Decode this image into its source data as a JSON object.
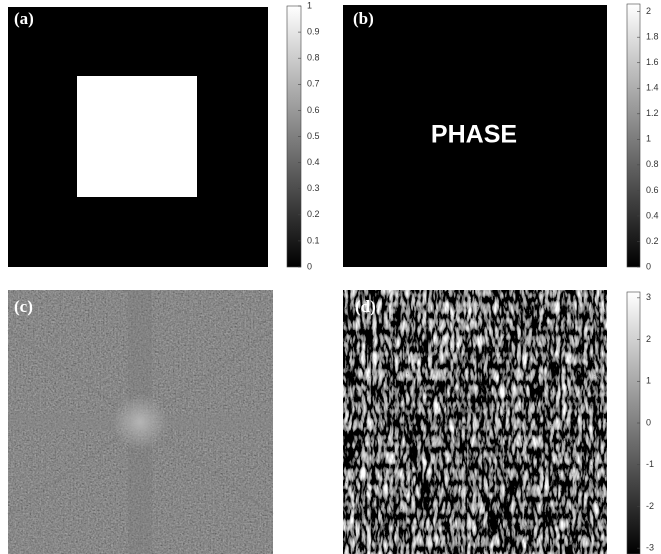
{
  "panels": [
    {
      "label": "(a)",
      "colorbar": {
        "lim": [
          0,
          1
        ],
        "ticks": [
          0,
          0.1,
          0.2,
          0.3,
          0.4,
          0.5,
          0.6,
          0.7,
          0.8,
          0.9,
          1
        ]
      }
    },
    {
      "label": "(b)",
      "text": "PHASE",
      "colorbar": {
        "lim": [
          0,
          2.06
        ],
        "ticks": [
          0,
          0.2,
          0.4,
          0.6,
          0.8,
          1,
          1.2,
          1.4,
          1.6,
          1.8,
          2
        ]
      }
    },
    {
      "label": "(c)"
    },
    {
      "label": "(d)",
      "colorbar": {
        "lim": [
          -3.14,
          3.14
        ],
        "ticks": [
          -3,
          -2,
          -1,
          0,
          1,
          2,
          3
        ]
      }
    }
  ]
}
